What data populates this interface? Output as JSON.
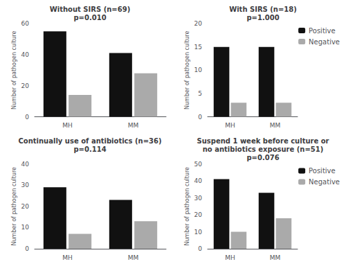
{
  "chart_data": [
    {
      "type": "bar",
      "title": "Without SIRS (n=69)\np=0.010",
      "categories": [
        "MH",
        "MM"
      ],
      "series": [
        {
          "name": "Positive",
          "color": "#111111",
          "values": [
            55,
            41
          ]
        },
        {
          "name": "Negative",
          "color": "#aaaaaa",
          "values": [
            14,
            28
          ]
        }
      ],
      "ylabel": "Number of pathogen culture",
      "ylim": [
        0,
        60
      ],
      "yticks": [
        0,
        20,
        40,
        60
      ],
      "grid": false
    },
    {
      "type": "bar",
      "title": "With SIRS (n=18)\np=1.000",
      "categories": [
        "MH",
        "MM"
      ],
      "series": [
        {
          "name": "Positive",
          "color": "#111111",
          "values": [
            15,
            15
          ]
        },
        {
          "name": "Negative",
          "color": "#aaaaaa",
          "values": [
            3,
            3
          ]
        }
      ],
      "ylabel": "Number of pathogen culture",
      "ylim": [
        0,
        20
      ],
      "yticks": [
        0,
        5,
        10,
        15,
        20
      ],
      "grid": false,
      "legend": "upper right"
    },
    {
      "type": "bar",
      "title": "Continually use of antibiotics (n=36)\np=0.114",
      "categories": [
        "MH",
        "MM"
      ],
      "series": [
        {
          "name": "Positive",
          "color": "#111111",
          "values": [
            29,
            23
          ]
        },
        {
          "name": "Negative",
          "color": "#aaaaaa",
          "values": [
            7,
            13
          ]
        }
      ],
      "ylabel": "Number of pathogen culture",
      "ylim": [
        0,
        40
      ],
      "yticks": [
        0,
        10,
        20,
        30,
        40
      ],
      "grid": false
    },
    {
      "type": "bar",
      "title": "Suspend 1 week before culture or\nno antibiotics exposure (n=51)\np=0.076",
      "categories": [
        "MH",
        "MM"
      ],
      "series": [
        {
          "name": "Positive",
          "color": "#111111",
          "values": [
            41,
            33
          ]
        },
        {
          "name": "Negative",
          "color": "#aaaaaa",
          "values": [
            10,
            18
          ]
        }
      ],
      "ylabel": "Number of pathogen culture",
      "ylim": [
        0,
        50
      ],
      "yticks": [
        0,
        10,
        20,
        30,
        40,
        50
      ],
      "grid": false,
      "legend": "upper right"
    }
  ]
}
